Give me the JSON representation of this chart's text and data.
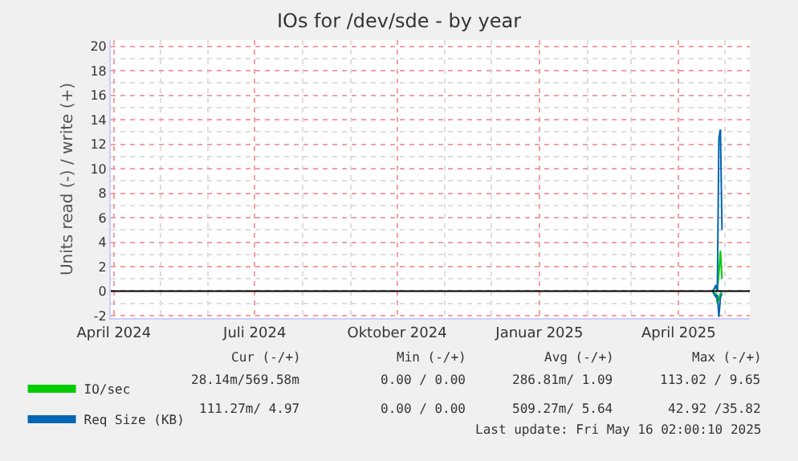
{
  "chart_data": {
    "type": "line",
    "title": "IOs for /dev/sde - by year",
    "ylabel": "Units read (-) / write (+)",
    "xlim": [
      "2024-03-30",
      "2025-05-17"
    ],
    "ylim": [
      -2.2,
      20.5
    ],
    "xticks": [
      {
        "value": "2024-04-01",
        "label": "April 2024"
      },
      {
        "value": "2024-07-01",
        "label": "Juli 2024"
      },
      {
        "value": "2024-10-01",
        "label": "Oktober 2024"
      },
      {
        "value": "2025-01-01",
        "label": "Januar 2025"
      },
      {
        "value": "2025-04-01",
        "label": "April 2025"
      }
    ],
    "yticks": [
      -2,
      0,
      2,
      4,
      6,
      8,
      10,
      12,
      14,
      16,
      18,
      20
    ],
    "grid": true,
    "legend": "bottom left",
    "ref_lines": [
      {
        "axis": "y",
        "value": 0,
        "label": null,
        "color": "#000000"
      }
    ],
    "series": [
      {
        "name": "IO/sec",
        "color": "#00cc00",
        "x": [
          "2025-04-23",
          "2025-04-24",
          "2025-04-25",
          "2025-04-26",
          "2025-04-27",
          "2025-04-28",
          "2025-04-29"
        ],
        "values": [
          0,
          0.2,
          0.3,
          0.1,
          1.5,
          3.3,
          1.0
        ]
      },
      {
        "color": "#00cc00",
        "x": [
          "2025-04-23",
          "2025-04-24",
          "2025-04-25",
          "2025-04-26",
          "2025-04-27",
          "2025-04-28",
          "2025-04-29"
        ],
        "values": [
          0,
          -0.3,
          -0.2,
          -1.0,
          -0.6,
          -0.2,
          -0.1
        ]
      },
      {
        "name": "Req Size (KB)",
        "color": "#0066b3",
        "x": [
          "2025-04-23",
          "2025-04-24",
          "2025-04-25",
          "2025-04-26",
          "2025-04-27",
          "2025-04-28",
          "2025-04-29"
        ],
        "values": [
          0,
          0.2,
          0.5,
          0,
          12.5,
          13.2,
          5.0
        ]
      },
      {
        "color": "#0066b3",
        "x": [
          "2025-04-23",
          "2025-04-24",
          "2025-04-25",
          "2025-04-26",
          "2025-04-27",
          "2025-04-28",
          "2025-04-29"
        ],
        "values": [
          0,
          -0.2,
          -0.5,
          -0.3,
          -2.1,
          -0.5,
          -0.2
        ]
      }
    ],
    "annotations": [
      "Cur (-/+)",
      "Min (-/+)",
      "Avg (-/+)",
      "Max (-/+)",
      "28.14m/569.58m",
      "0.00 / 0.00",
      "286.81m/ 1.09",
      "113.02 / 9.65",
      "111.27m/ 4.97",
      "0.00 / 0.00",
      "509.27m/ 5.64",
      "42.92 /35.82",
      "Last update: Fri May 16 02:00:10 2025"
    ]
  }
}
